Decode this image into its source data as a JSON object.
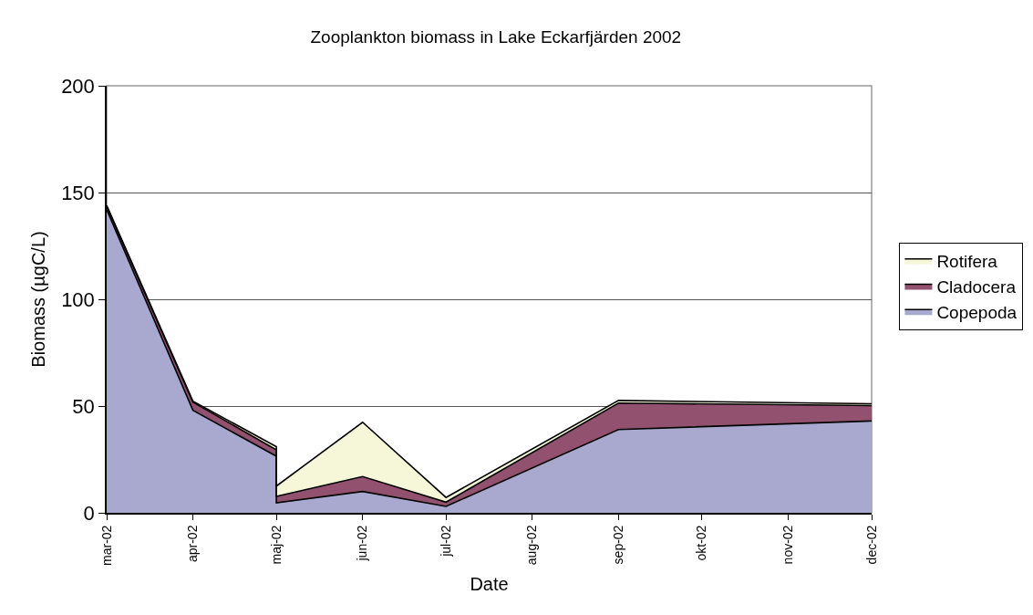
{
  "chart_data": {
    "type": "area",
    "title": "Zooplankton biomass in Lake Eckarfjärden 2002",
    "xlabel": "Date",
    "ylabel": "Biomass (µgC/L)",
    "x": [
      "2002-03",
      "2002-04",
      "2002-05",
      "2002-05",
      "2002-06",
      "2002-07",
      "2002-09",
      "2002-12"
    ],
    "series": [
      {
        "name": "Copepoda",
        "color": "#a9a8cf",
        "values": [
          142,
          48,
          26.5,
          4.7,
          10,
          3,
          39,
          43
        ]
      },
      {
        "name": "Cladocera",
        "color": "#92516f",
        "values": [
          1.5,
          3.8,
          3,
          3,
          7,
          2,
          12.4,
          7.2
        ]
      },
      {
        "name": "Rotifera",
        "color": "#f6f7d9",
        "values": [
          0.5,
          0.5,
          1.5,
          4.8,
          25.4,
          2.2,
          1.2,
          0.9
        ]
      }
    ],
    "stacked": true,
    "xlim": [
      "2002-03",
      "2002-12"
    ],
    "xticks": [
      {
        "value": "2002-03",
        "label": "mar-02"
      },
      {
        "value": "2002-04",
        "label": "apr-02"
      },
      {
        "value": "2002-05",
        "label": "maj-02"
      },
      {
        "value": "2002-06",
        "label": "jun-02"
      },
      {
        "value": "2002-07",
        "label": "jul-02"
      },
      {
        "value": "2002-08",
        "label": "aug-02"
      },
      {
        "value": "2002-09",
        "label": "sep-02"
      },
      {
        "value": "2002-10",
        "label": "okt-02"
      },
      {
        "value": "2002-11",
        "label": "nov-02"
      },
      {
        "value": "2002-12",
        "label": "dec-02"
      }
    ],
    "ylim": [
      0,
      200
    ],
    "yticks": [
      0,
      50,
      100,
      150,
      200
    ],
    "grid": "y",
    "legend": "right"
  }
}
